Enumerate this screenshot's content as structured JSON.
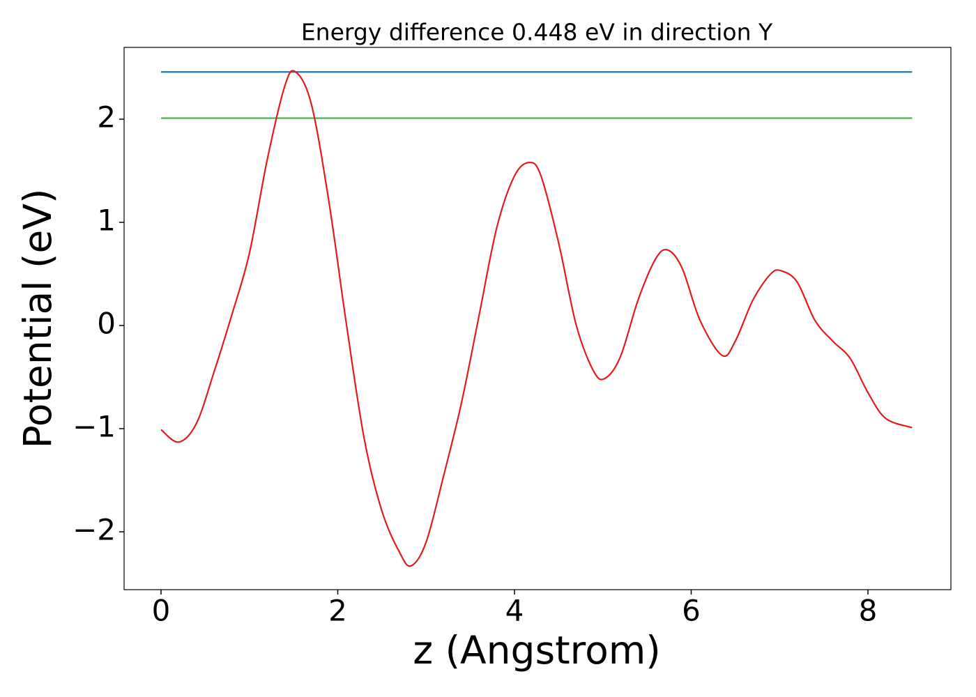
{
  "chart_data": {
    "type": "line",
    "title": "Energy difference 0.448 eV in direction Y",
    "xlabel": "z (Angstrom)",
    "ylabel": "Potential (eV)",
    "xlim": [
      -0.418,
      8.939
    ],
    "ylim": [
      -2.561,
      2.696
    ],
    "xticks": [
      0,
      2,
      4,
      6,
      8
    ],
    "yticks": [
      {
        "value": -2,
        "label": "−2"
      },
      {
        "value": -1,
        "label": "−1"
      },
      0,
      1,
      2
    ],
    "series": [
      {
        "color": "#1f77b4",
        "x": [
          0,
          8.5
        ],
        "values": [
          2.458,
          2.458
        ]
      },
      {
        "color": "#4daf4a",
        "x": [
          0,
          8.5
        ],
        "values": [
          2.01,
          2.01
        ]
      },
      {
        "color": "#e41a1c",
        "x": [
          0,
          0.2,
          0.4,
          0.6,
          0.8,
          1.0,
          1.2,
          1.4,
          1.52,
          1.7,
          1.9,
          2.1,
          2.3,
          2.5,
          2.7,
          2.83,
          3.0,
          3.2,
          3.4,
          3.6,
          3.8,
          4.0,
          4.17,
          4.3,
          4.5,
          4.7,
          4.9,
          5.03,
          5.2,
          5.4,
          5.6,
          5.74,
          5.9,
          6.1,
          6.35,
          6.5,
          6.7,
          6.9,
          7.02,
          7.2,
          7.4,
          7.6,
          7.8,
          8.0,
          8.2,
          8.5
        ],
        "values": [
          -1.01,
          -1.13,
          -0.95,
          -0.45,
          0.1,
          0.7,
          1.6,
          2.32,
          2.46,
          2.15,
          1.2,
          0.0,
          -1.1,
          -1.8,
          -2.2,
          -2.33,
          -2.1,
          -1.45,
          -0.75,
          0.1,
          0.95,
          1.45,
          1.58,
          1.45,
          0.8,
          0.0,
          -0.45,
          -0.51,
          -0.3,
          0.25,
          0.65,
          0.73,
          0.55,
          0.05,
          -0.29,
          -0.15,
          0.25,
          0.5,
          0.53,
          0.42,
          0.05,
          -0.15,
          -0.32,
          -0.65,
          -0.9,
          -0.99
        ]
      }
    ]
  }
}
